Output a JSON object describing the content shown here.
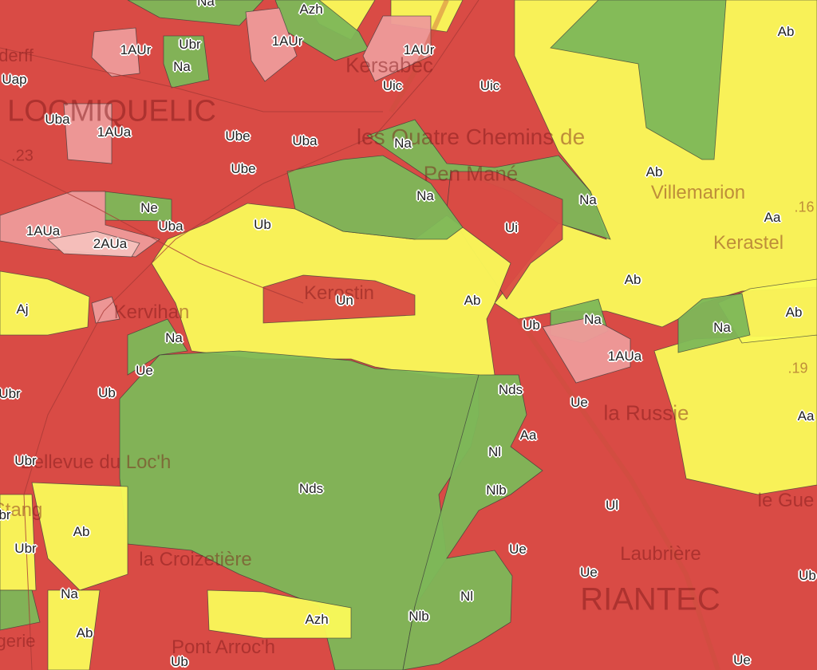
{
  "colors": {
    "urban": "#d94b45",
    "agricultural": "#fafa5a",
    "natural": "#7db758",
    "future_urban": "#ee9a9a",
    "future_urban_light": "#f5c0bc"
  },
  "zone_labels": [
    "Na",
    "Azh",
    "Ab",
    "1AUr",
    "Ubr",
    "1AUr",
    "1AUr",
    "Na",
    "Uap",
    "Kersabiec",
    "Uic",
    "Uic",
    "Na",
    "Uba",
    "1AUa",
    "Ube",
    "Uba",
    "Ube",
    "Na",
    "Ab",
    "Na",
    "Ne",
    "Uba",
    "Ub",
    "Ui",
    "Aa",
    "1AUa",
    "2AUa",
    "Ab",
    "Aj",
    "Un",
    "Ab",
    "Ub",
    "Na",
    "Ab",
    "Na",
    "Na",
    "1AUa",
    "Ue",
    "Nds",
    "Ue",
    "Ubr",
    "Ub",
    "Aa",
    "Aa",
    "Nl",
    "Ubr",
    "Nds",
    "Nlb",
    "Ul",
    "br",
    "Ab",
    "Ubr",
    "Ue",
    "Ue",
    "Na",
    "Nl",
    "Ub",
    "Azh",
    "Nlb",
    "Ab",
    "Ub",
    "Ue"
  ],
  "place_names": [
    "LOCMIQUELIC",
    "Kersabec",
    "les Quatre Chemins de",
    "Pen Mané",
    "Villemarion",
    "Kerastel",
    "Kerostin",
    "Kervihan",
    "la Russie",
    "Bellevue du Loc'h",
    "la Croizetière",
    "Laubrière",
    "RIANTEC",
    "Pont Arroc'h",
    "le Gue",
    "derff",
    "Stang",
    "gerie",
    ".23",
    ".16",
    ".19"
  ]
}
